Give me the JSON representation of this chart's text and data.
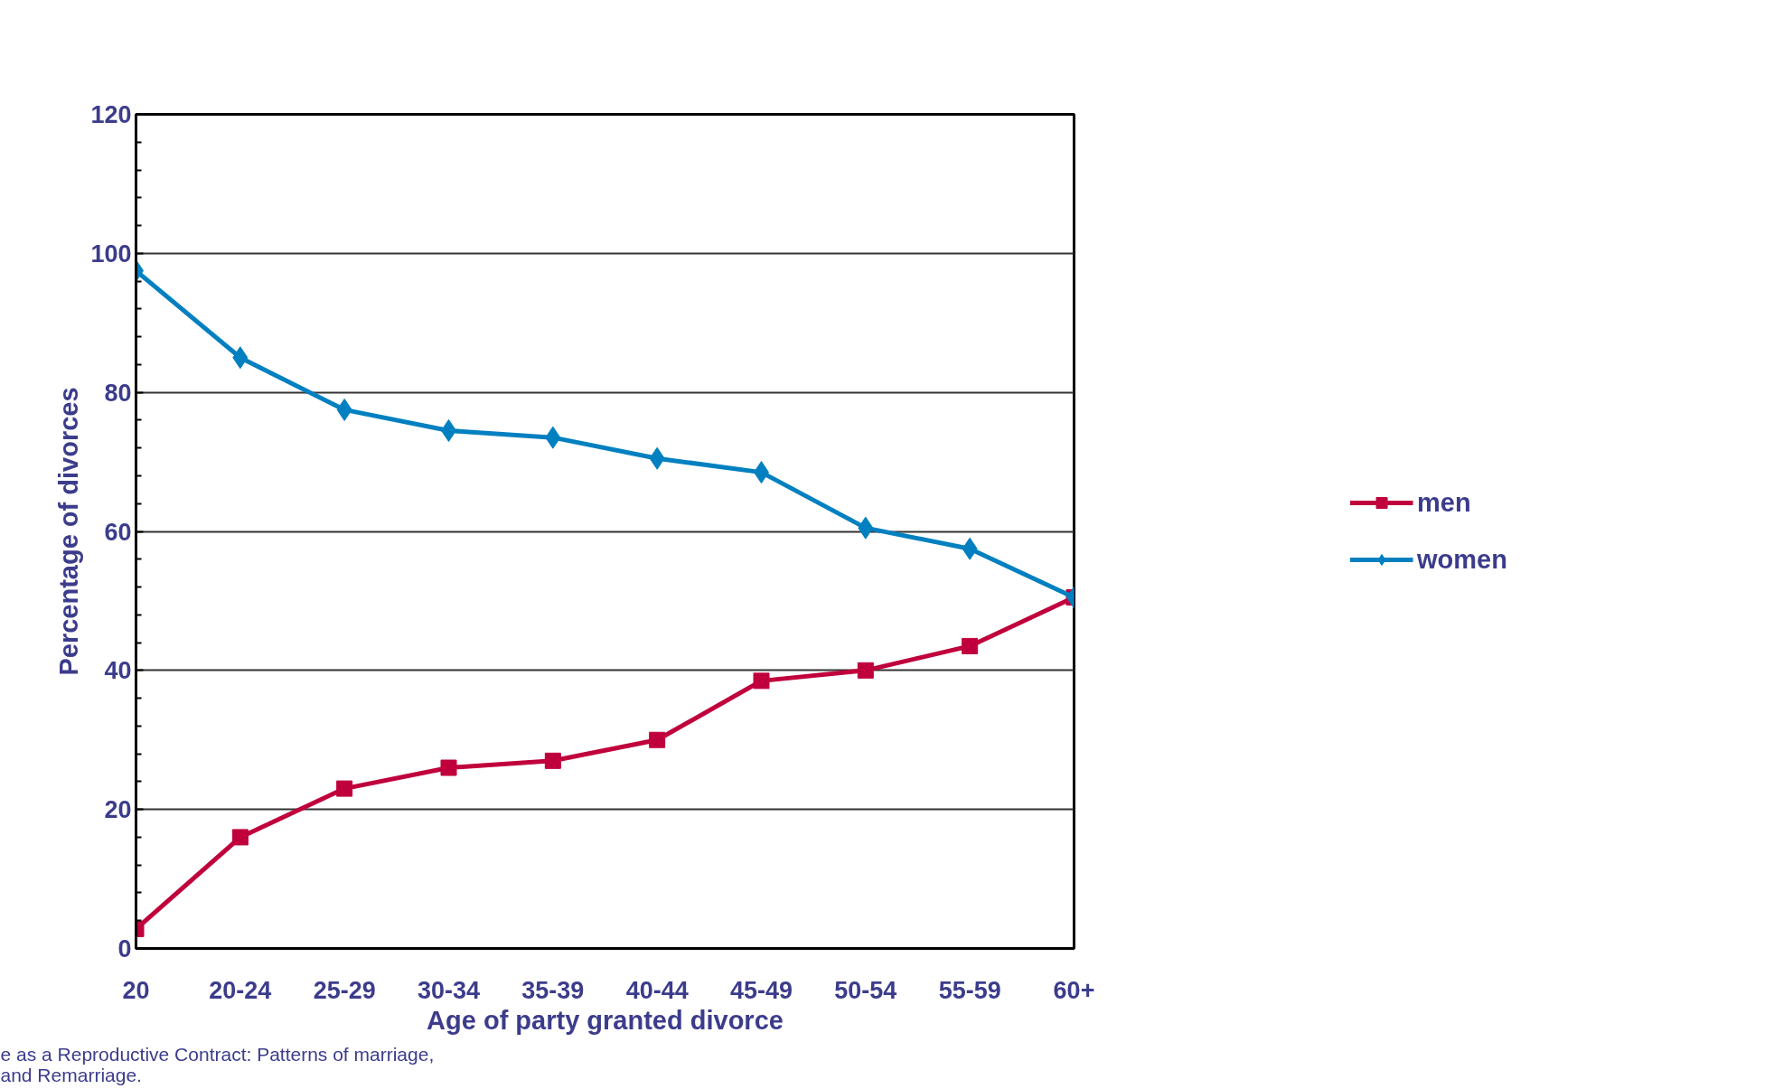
{
  "chart_data": {
    "type": "line",
    "xlabel": "Age of party granted divorce",
    "ylabel": "Percentage of divorces",
    "categories": [
      "20",
      "20-24",
      "25-29",
      "30-34",
      "35-39",
      "40-44",
      "45-49",
      "50-54",
      "55-59",
      "60+"
    ],
    "series": [
      {
        "name": "men",
        "color": "#c0003c",
        "marker": "square",
        "values": [
          2.8,
          16,
          23,
          26,
          27,
          30,
          38.5,
          40,
          43.5,
          50.5
        ]
      },
      {
        "name": "women",
        "color": "#0080c0",
        "marker": "diamond",
        "values": [
          97.5,
          85,
          77.5,
          74.5,
          73.5,
          70.5,
          68.5,
          60.5,
          57.5,
          50.5
        ]
      }
    ],
    "ylim": [
      0,
      120
    ],
    "yticks": [
      0,
      20,
      40,
      60,
      80,
      100,
      120
    ],
    "grid": "y",
    "legend": "right",
    "line_style": "solid",
    "annotations": [
      "e as a Reproductive Contract: Patterns of marriage,\nand Remarriage."
    ]
  }
}
